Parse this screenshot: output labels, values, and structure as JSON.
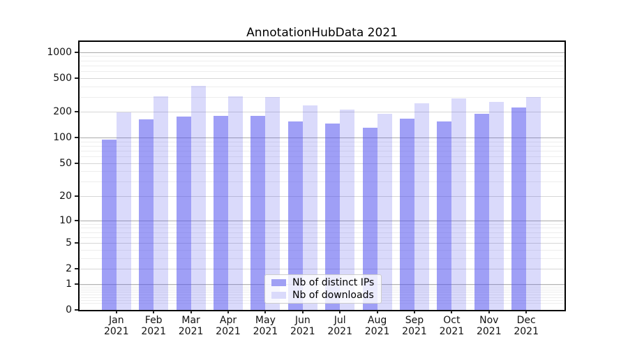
{
  "title": "AnnotationHubData 2021",
  "chart_data": {
    "type": "bar",
    "title": "AnnotationHubData 2021",
    "categories": [
      "Jan",
      "Feb",
      "Mar",
      "Apr",
      "May",
      "Jun",
      "Jul",
      "Aug",
      "Sep",
      "Oct",
      "Nov",
      "Dec"
    ],
    "x_year": "2021",
    "series": [
      {
        "name": "Nb of distinct IPs",
        "values": [
          94,
          164,
          178,
          180,
          179,
          156,
          146,
          131,
          166,
          154,
          192,
          224
        ],
        "fill": "rgba(80,80,238,0.55)",
        "legend_color": "#a0a0f4"
      },
      {
        "name": "Nb of downloads",
        "values": [
          197,
          303,
          405,
          306,
          297,
          241,
          213,
          191,
          255,
          286,
          261,
          297
        ],
        "fill": "rgba(80,80,238,0.21)",
        "legend_color": "#dadafb"
      }
    ],
    "yscale": "log1p",
    "y_ticks": [
      0,
      1,
      2,
      5,
      10,
      20,
      50,
      100,
      200,
      500,
      1000
    ],
    "ylim": [
      0,
      1300
    ],
    "grid": true,
    "legend_position": "lower center"
  }
}
